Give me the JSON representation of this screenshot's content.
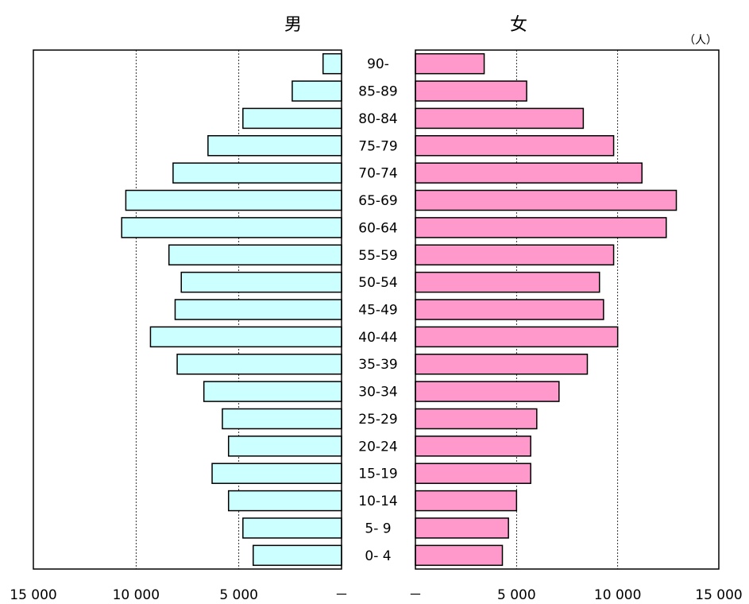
{
  "chart_data": {
    "type": "bar",
    "subtype": "population-pyramid",
    "unit": "（人）",
    "categories": [
      "90-",
      "85-89",
      "80-84",
      "75-79",
      "70-74",
      "65-69",
      "60-64",
      "55-59",
      "50-54",
      "45-49",
      "40-44",
      "35-39",
      "30-34",
      "25-29",
      "20-24",
      "15-19",
      "10-14",
      "5- 9",
      "0- 4"
    ],
    "series": [
      {
        "name": "男",
        "color": "#ccffff",
        "values": [
          900,
          2400,
          4800,
          6500,
          8200,
          10500,
          10700,
          8400,
          7800,
          8100,
          9300,
          8000,
          6700,
          5800,
          5500,
          6300,
          5500,
          4800,
          4300
        ]
      },
      {
        "name": "女",
        "color": "#ff99cc",
        "values": [
          3400,
          5500,
          8300,
          9800,
          11200,
          12900,
          12400,
          9800,
          9100,
          9300,
          10000,
          8500,
          7100,
          6000,
          5700,
          5700,
          5000,
          4600,
          4300
        ]
      }
    ],
    "axis": {
      "left_ticks": [
        "15 000",
        "10 000",
        "5 000",
        "－"
      ],
      "right_ticks": [
        "－",
        "5 000",
        "10 000",
        "15 000"
      ],
      "left_tick_values": [
        15000,
        10000,
        5000,
        0
      ],
      "right_tick_values": [
        0,
        5000,
        10000,
        15000
      ],
      "xlim": [
        0,
        15000
      ]
    },
    "grid": "vertical dotted at 5000 and 10000"
  }
}
